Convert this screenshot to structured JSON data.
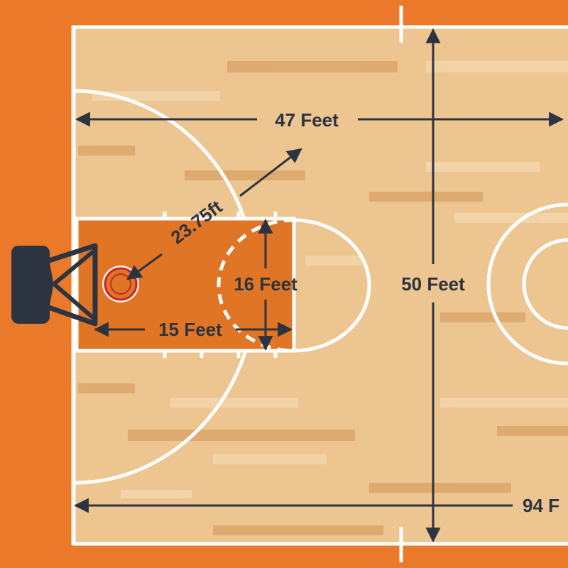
{
  "labels": {
    "three_point_radius": "23.75ft",
    "lane_width": "16 Feet",
    "free_throw_distance": "15 Feet",
    "half_court_length": "47 Feet",
    "court_width": "50 Feet",
    "court_length": "94 F"
  },
  "colors": {
    "surround": "#ea7a2a",
    "wood": "#ecc591",
    "wood_plank_dark": "#dca66a",
    "wood_plank_light": "#f3d6ab",
    "paint": "#e07526",
    "lines": "#ffffff",
    "arrows": "#2b3440",
    "backboard": "#2b3440",
    "rim": "#c62828"
  },
  "icons": [
    "backboard-icon",
    "hoop-icon"
  ]
}
